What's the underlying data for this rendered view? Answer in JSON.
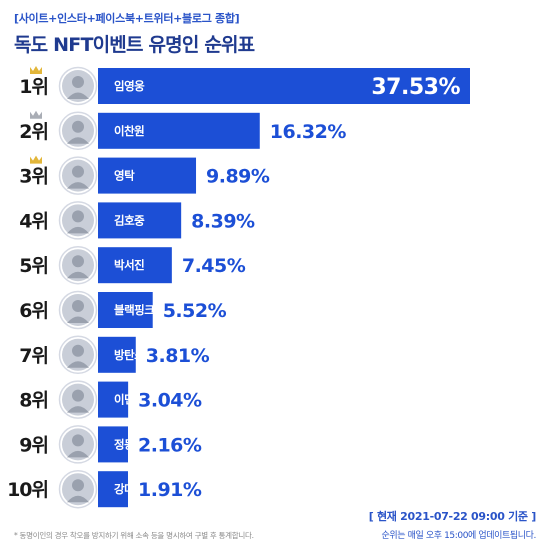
{
  "header": {
    "subtitle": "[사이트+인스타+페이스북+트위터+블로그 종합]",
    "title": "독도 NFT이벤트 유명인 순위표"
  },
  "chart_data": {
    "type": "bar",
    "orientation": "horizontal",
    "title": "독도 NFT이벤트 유명인 순위표",
    "subtitle": "[사이트+인스타+페이스북+트위터+블로그 종합]",
    "xlim": [
      0,
      40
    ],
    "value_suffix": "%",
    "ranks": [
      "1위",
      "2위",
      "3위",
      "4위",
      "5위",
      "6위",
      "7위",
      "8위",
      "9위",
      "10위"
    ],
    "categories": [
      "임영웅",
      "이찬원",
      "영탁",
      "김호중",
      "박서진",
      "블랙핑크",
      "방탄소년단",
      "이민호",
      "정동원",
      "강다니엘"
    ],
    "values": [
      37.53,
      16.32,
      9.89,
      8.39,
      7.45,
      5.52,
      3.81,
      3.04,
      2.16,
      1.91
    ],
    "value_labels": [
      "37.53%",
      "16.32%",
      "9.89%",
      "8.39%",
      "7.45%",
      "5.52%",
      "3.81%",
      "3.04%",
      "2.16%",
      "1.91%"
    ],
    "crowns": [
      "gold",
      "silver",
      "gold",
      null,
      null,
      null,
      null,
      null,
      null,
      null
    ],
    "colors": {
      "bar": "#1c4fd6",
      "value_outside": "#1c4fd6",
      "crown_gold": "#e2b63a",
      "crown_silver": "#a9adb5",
      "avatar_ring": "#d5d9e3"
    }
  },
  "footer": {
    "footnote": "* 동명이인의 경우 착오를 방지하기 위해 소속 등을 명시하여 구별 후 통계합니다.",
    "as_of": "[ 현재 2021-07-22 09:00 기준 ]",
    "update_note": "순위는 매일 오후 15:00에 업데이트됩니다."
  }
}
